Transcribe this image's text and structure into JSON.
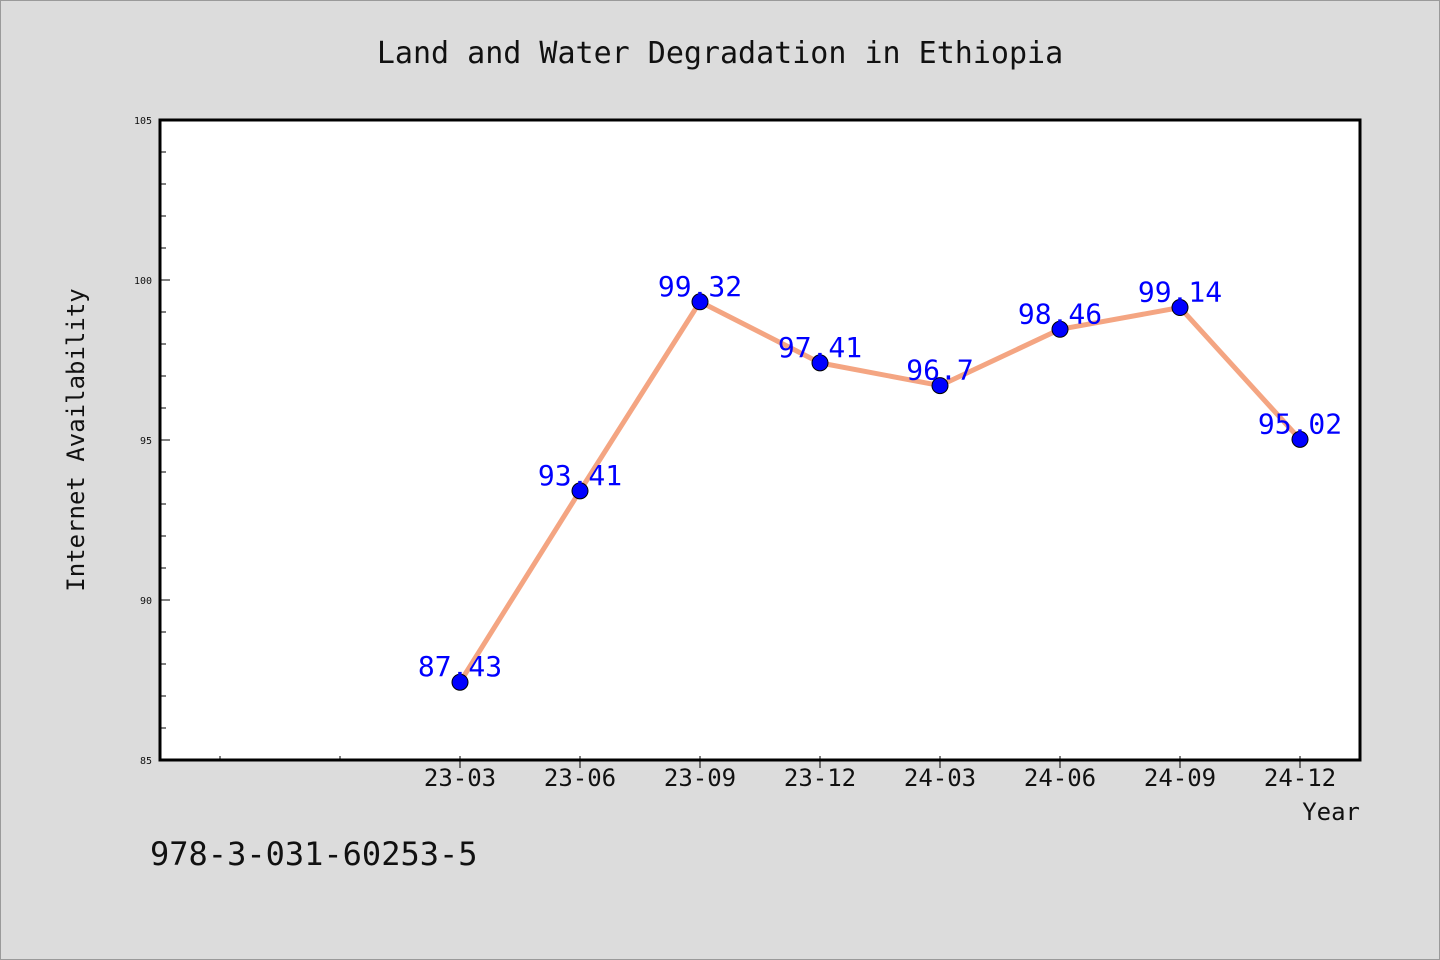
{
  "chart_data": {
    "type": "line",
    "title": "Land and Water Degradation in Ethiopia",
    "xlabel": "Year",
    "ylabel": "Internet Availability",
    "categories": [
      "23-03",
      "23-06",
      "23-09",
      "23-12",
      "24-03",
      "24-06",
      "24-09",
      "24-12"
    ],
    "series": [
      {
        "values": [
          87.43,
          93.41,
          99.32,
          97.41,
          96.7,
          98.46,
          99.14,
          95.02
        ]
      }
    ],
    "data_labels": [
      "87.43",
      "93.41",
      "99.32",
      "97.41",
      "96.7",
      "98.46",
      "99.14",
      "95.02"
    ],
    "ylim": [
      85,
      105
    ],
    "y_ticks": [
      "85",
      "90",
      "95",
      "100",
      "105"
    ],
    "grid": false,
    "line_color": "#f4a582",
    "marker_color": "#0000ff",
    "label_color": "#0000ff"
  },
  "footer_text": "978-3-031-60253-5"
}
